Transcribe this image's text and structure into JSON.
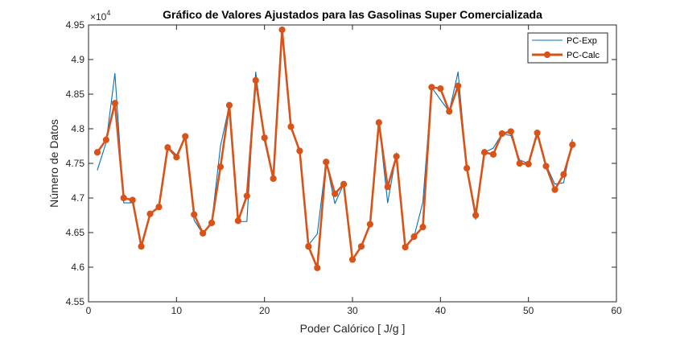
{
  "chart_data": {
    "type": "line",
    "title": "Gráfico de Valores Ajustados para las Gasolinas Super Comercializada",
    "xlabel": "Poder Calórico [ J/g ]",
    "ylabel": "Número de Datos",
    "y_multiplier_label": "×10",
    "y_multiplier_exponent": "4",
    "xlim": [
      0,
      60
    ],
    "ylim": [
      4.55,
      4.95
    ],
    "xticks": [
      0,
      10,
      20,
      30,
      40,
      50,
      60
    ],
    "xtick_labels": [
      "0",
      "10",
      "20",
      "30",
      "40",
      "50",
      "60"
    ],
    "yticks": [
      4.55,
      4.6,
      4.65,
      4.7,
      4.75,
      4.8,
      4.85,
      4.9,
      4.95
    ],
    "ytick_labels": [
      "4.55",
      "4.6",
      "4.65",
      "4.7",
      "4.75",
      "4.8",
      "4.85",
      "4.9",
      "4.95"
    ],
    "grid": false,
    "legend_position": "top-right",
    "x": [
      1,
      2,
      3,
      4,
      5,
      6,
      7,
      8,
      9,
      10,
      11,
      12,
      13,
      14,
      15,
      16,
      17,
      18,
      19,
      20,
      21,
      22,
      23,
      24,
      25,
      26,
      27,
      28,
      29,
      30,
      31,
      32,
      33,
      34,
      35,
      36,
      37,
      38,
      39,
      40,
      41,
      42,
      43,
      44,
      45,
      46,
      47,
      48,
      49,
      50,
      51,
      52,
      53,
      54,
      55
    ],
    "series": [
      {
        "name": "PC-Exp",
        "color": "#0072BD",
        "marker": false,
        "values": [
          4.74,
          4.78,
          4.88,
          4.693,
          4.693,
          4.632,
          4.678,
          4.686,
          4.774,
          4.762,
          4.788,
          4.668,
          4.648,
          4.664,
          4.775,
          4.834,
          4.666,
          4.666,
          4.882,
          4.782,
          4.727,
          4.938,
          4.803,
          4.765,
          4.632,
          4.648,
          4.753,
          4.692,
          4.72,
          4.61,
          4.63,
          4.662,
          4.81,
          4.693,
          4.765,
          4.63,
          4.644,
          4.694,
          4.86,
          4.842,
          4.825,
          4.882,
          4.743,
          4.669,
          4.766,
          4.772,
          4.793,
          4.79,
          4.755,
          4.75,
          4.79,
          4.748,
          4.72,
          4.722,
          4.785
        ]
      },
      {
        "name": "PC-Calc",
        "color": "#D95319",
        "marker": true,
        "values": [
          4.766,
          4.784,
          4.837,
          4.7,
          4.697,
          4.63,
          4.677,
          4.687,
          4.773,
          4.759,
          4.789,
          4.676,
          4.649,
          4.664,
          4.745,
          4.834,
          4.667,
          4.703,
          4.87,
          4.787,
          4.728,
          4.943,
          4.803,
          4.768,
          4.63,
          4.599,
          4.752,
          4.706,
          4.72,
          4.611,
          4.63,
          4.662,
          4.809,
          4.716,
          4.76,
          4.629,
          4.644,
          4.658,
          4.86,
          4.858,
          4.825,
          4.862,
          4.743,
          4.675,
          4.766,
          4.763,
          4.793,
          4.796,
          4.75,
          4.749,
          4.794,
          4.746,
          4.712,
          4.734,
          4.777
        ]
      }
    ]
  }
}
